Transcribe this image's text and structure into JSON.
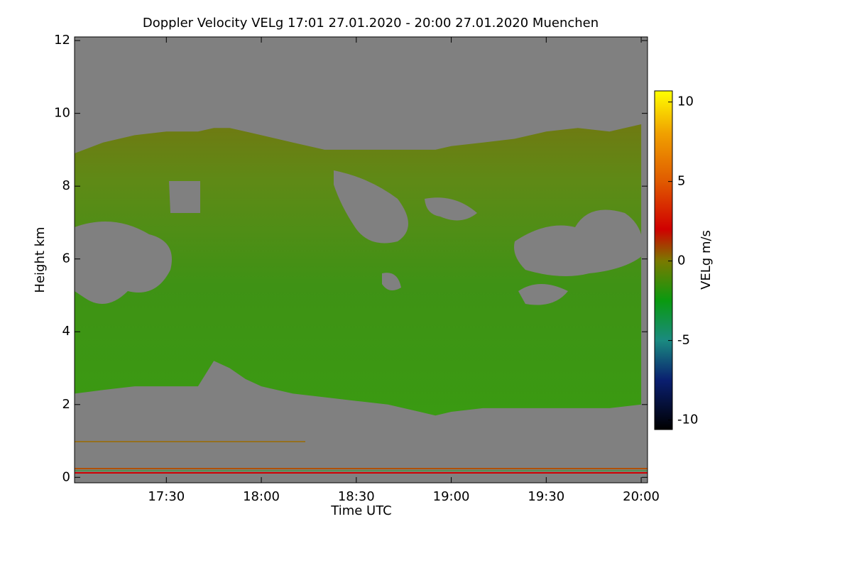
{
  "chart_data": {
    "type": "heatmap",
    "title": "Doppler Velocity VELg   17:01 27.01.2020 - 20:00 27.01.2020 Muenchen",
    "xlabel": "Time UTC",
    "ylabel": "Height km",
    "xlim": [
      1021,
      1202
    ],
    "xticks": [
      {
        "value": 1050,
        "label": "17:30"
      },
      {
        "value": 1080,
        "label": "18:00"
      },
      {
        "value": 1110,
        "label": "18:30"
      },
      {
        "value": 1140,
        "label": "19:00"
      },
      {
        "value": 1170,
        "label": "19:30"
      },
      {
        "value": 1200,
        "label": "20:00"
      }
    ],
    "ylim": [
      -0.15,
      12.1
    ],
    "yticks": [
      0,
      2,
      4,
      6,
      8,
      10,
      12
    ],
    "background_color": "#808080",
    "echo": {
      "x": [
        1021,
        1030,
        1040,
        1050,
        1060,
        1065,
        1070,
        1075,
        1080,
        1090,
        1100,
        1110,
        1120,
        1130,
        1135,
        1140,
        1150,
        1160,
        1170,
        1180,
        1190,
        1200
      ],
      "top": [
        8.9,
        9.2,
        9.4,
        9.5,
        9.5,
        9.6,
        9.6,
        9.5,
        9.4,
        9.2,
        9.0,
        9.0,
        9.0,
        9.0,
        9.0,
        9.1,
        9.2,
        9.3,
        9.5,
        9.6,
        9.5,
        9.7
      ],
      "base": [
        2.3,
        2.4,
        2.5,
        2.5,
        2.5,
        3.2,
        3.0,
        2.7,
        2.5,
        2.3,
        2.2,
        2.1,
        2.0,
        1.8,
        1.7,
        1.8,
        1.9,
        1.9,
        1.9,
        1.9,
        1.9,
        2.0
      ]
    },
    "colorbar": {
      "label": "VELg m/s",
      "zlim": [
        -10.6,
        10.7
      ],
      "zticks": [
        -10,
        -5,
        0,
        5,
        10
      ],
      "colormap": [
        {
          "value": -10.6,
          "color": "#000000"
        },
        {
          "value": -7.5,
          "color": "#0a1f70"
        },
        {
          "value": -5,
          "color": "#1a8a80"
        },
        {
          "value": -2.5,
          "color": "#0a9a10"
        },
        {
          "value": 0,
          "color": "#7a7a00"
        },
        {
          "value": 2,
          "color": "#d00000"
        },
        {
          "value": 5,
          "color": "#e05a00"
        },
        {
          "value": 8,
          "color": "#f0a000"
        },
        {
          "value": 10.7,
          "color": "#ffff00"
        }
      ]
    }
  }
}
